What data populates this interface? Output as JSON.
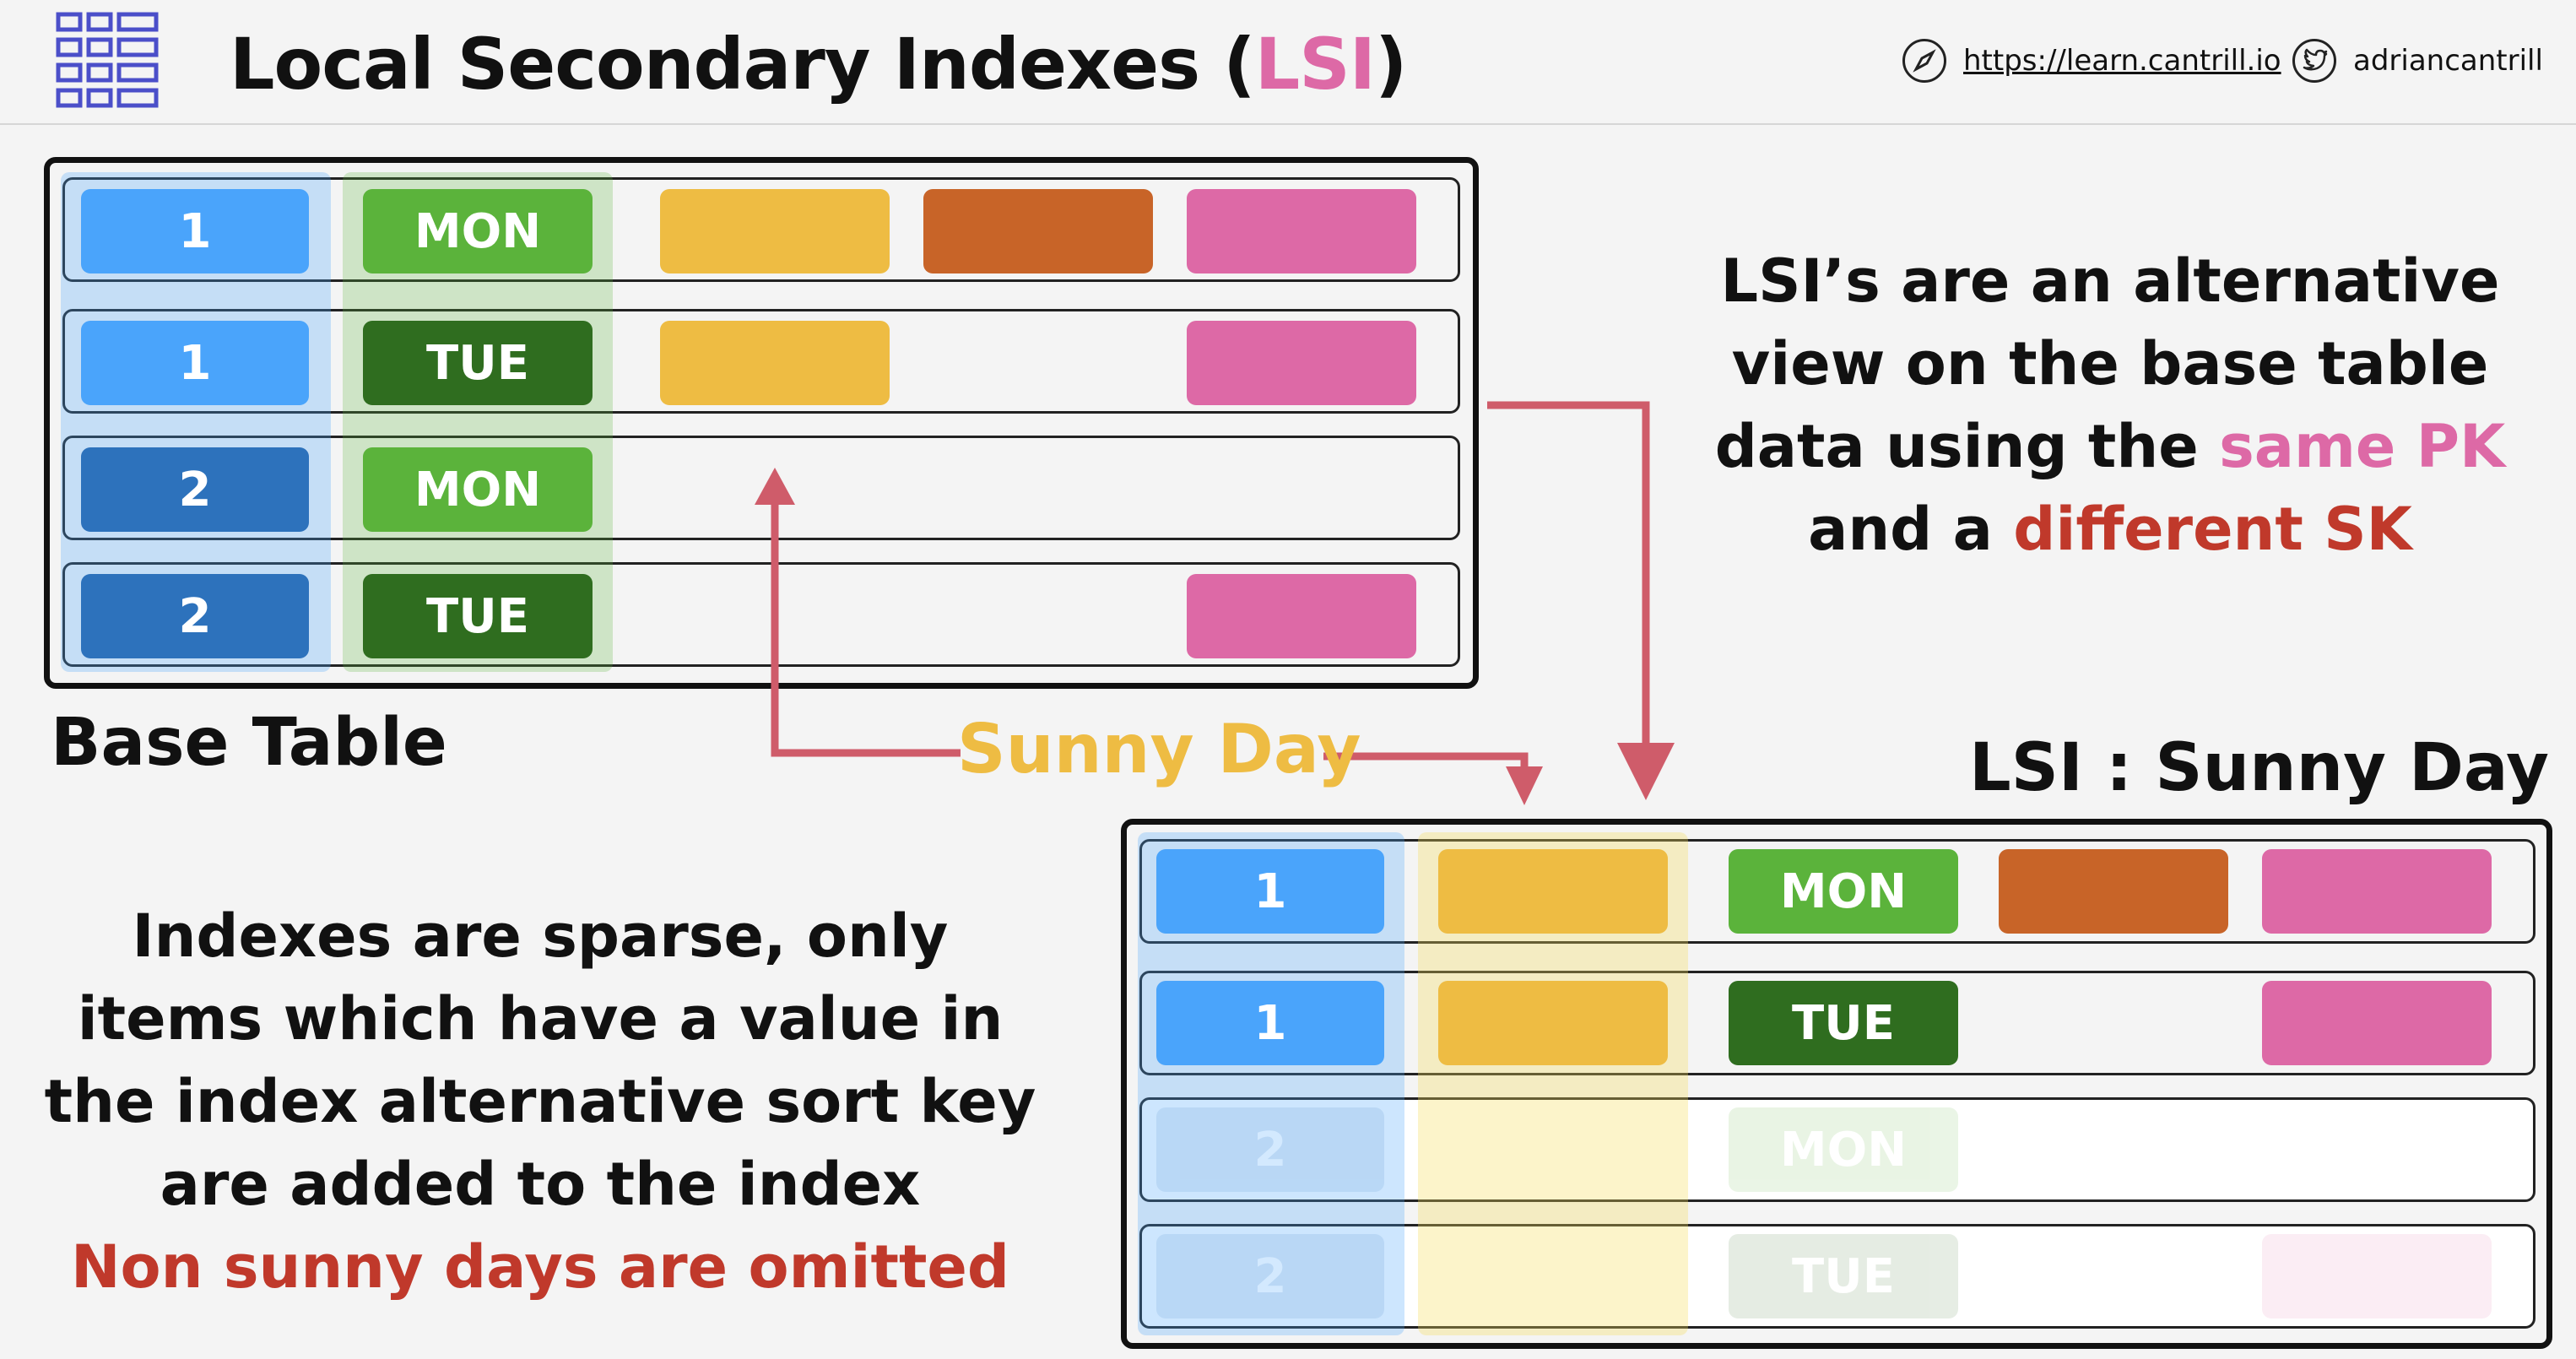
{
  "header": {
    "title_prefix": "Local Secondary Indexes (",
    "title_highlight": "LSI",
    "title_suffix": ")",
    "website": "https://learn.cantrill.io",
    "handle": "adriancantrill",
    "icons": [
      "table-grid-icon",
      "compass-icon",
      "twitter-bird-icon"
    ]
  },
  "base_table": {
    "label": "Base Table",
    "rows": [
      {
        "pk": "1",
        "sk": "MON"
      },
      {
        "pk": "1",
        "sk": "TUE"
      },
      {
        "pk": "2",
        "sk": "MON"
      },
      {
        "pk": "2",
        "sk": "TUE"
      }
    ]
  },
  "lsi_table": {
    "label": "LSI : Sunny Day",
    "rows": [
      {
        "pk": "1",
        "sk": "MON"
      },
      {
        "pk": "1",
        "sk": "TUE"
      },
      {
        "pk": "2",
        "sk": "MON"
      },
      {
        "pk": "2",
        "sk": "TUE"
      }
    ]
  },
  "arrow_label": "Sunny Day",
  "explanation": {
    "line1": "LSI’s are an alternative",
    "line2": "view on the base table",
    "line3_prefix": "data using the ",
    "line3_highlight": "same PK",
    "line4_prefix": "and a ",
    "line4_highlight": "different SK"
  },
  "sparse_note": {
    "line1": "Indexes are sparse, only",
    "line2": "items which have a value in",
    "line3": "the index alternative sort key",
    "line4": "are added to the index",
    "line5": "Non sunny days are omitted"
  },
  "colors": {
    "pink": "#dd69a6",
    "red": "#c0392b",
    "sunny": "#eebc43",
    "blue": "#4aa4fb",
    "dark_blue": "#2d72bc",
    "green": "#5bb33b",
    "dark_green": "#2f6d1f",
    "orange": "#c86428",
    "arrow": "#cf5c6a"
  }
}
